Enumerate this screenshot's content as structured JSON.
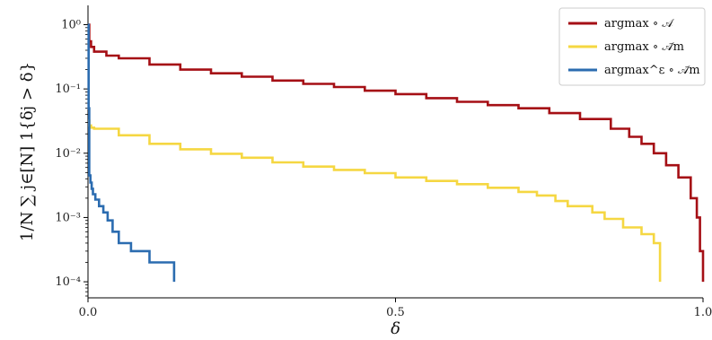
{
  "chart_data": {
    "type": "line",
    "xlabel": "δ",
    "ylabel": "1/N ∑ j∈[N] 1{δj > δ}",
    "xlim": [
      0,
      1
    ],
    "ylim_log10": [
      -4.25,
      0.3
    ],
    "y_scale": "log",
    "grid": false,
    "legend_position": "top-right",
    "x_ticks": [
      {
        "value": 0.0,
        "label": "0.0"
      },
      {
        "value": 0.5,
        "label": "0.5"
      },
      {
        "value": 1.0,
        "label": "1.0"
      }
    ],
    "y_ticks": [
      {
        "value": 1,
        "label": "10⁰"
      },
      {
        "value": 0.1,
        "label": "10⁻¹"
      },
      {
        "value": 0.01,
        "label": "10⁻²"
      },
      {
        "value": 0.001,
        "label": "10⁻³"
      },
      {
        "value": 0.0001,
        "label": "10⁻⁴"
      }
    ],
    "series": [
      {
        "name": "argmax ∘ 𝒜",
        "color": "#a50f15",
        "points": [
          [
            0.0,
            1.0
          ],
          [
            0.002,
            0.55
          ],
          [
            0.005,
            0.45
          ],
          [
            0.01,
            0.38
          ],
          [
            0.03,
            0.33
          ],
          [
            0.05,
            0.3
          ],
          [
            0.1,
            0.24
          ],
          [
            0.15,
            0.2
          ],
          [
            0.2,
            0.175
          ],
          [
            0.25,
            0.155
          ],
          [
            0.3,
            0.135
          ],
          [
            0.35,
            0.12
          ],
          [
            0.4,
            0.107
          ],
          [
            0.45,
            0.094
          ],
          [
            0.5,
            0.083
          ],
          [
            0.55,
            0.072
          ],
          [
            0.6,
            0.063
          ],
          [
            0.65,
            0.056
          ],
          [
            0.7,
            0.05
          ],
          [
            0.75,
            0.042
          ],
          [
            0.8,
            0.034
          ],
          [
            0.85,
            0.024
          ],
          [
            0.88,
            0.018
          ],
          [
            0.9,
            0.014
          ],
          [
            0.92,
            0.01
          ],
          [
            0.94,
            0.0065
          ],
          [
            0.96,
            0.0042
          ],
          [
            0.98,
            0.002
          ],
          [
            0.99,
            0.001
          ],
          [
            0.995,
            0.0003
          ],
          [
            1.0,
            0.0001
          ]
        ]
      },
      {
        "name": "argmax ∘ 𝒜̃m",
        "color": "#f5d742",
        "points": [
          [
            0.0,
            0.032
          ],
          [
            0.002,
            0.027
          ],
          [
            0.005,
            0.025
          ],
          [
            0.01,
            0.024
          ],
          [
            0.05,
            0.019
          ],
          [
            0.1,
            0.014
          ],
          [
            0.15,
            0.0115
          ],
          [
            0.2,
            0.0098
          ],
          [
            0.25,
            0.0085
          ],
          [
            0.3,
            0.0072
          ],
          [
            0.35,
            0.0062
          ],
          [
            0.4,
            0.0055
          ],
          [
            0.45,
            0.0049
          ],
          [
            0.5,
            0.0042
          ],
          [
            0.55,
            0.0037
          ],
          [
            0.6,
            0.0033
          ],
          [
            0.65,
            0.0029
          ],
          [
            0.7,
            0.0025
          ],
          [
            0.73,
            0.0022
          ],
          [
            0.76,
            0.0018
          ],
          [
            0.78,
            0.0015
          ],
          [
            0.82,
            0.0012
          ],
          [
            0.84,
            0.00095
          ],
          [
            0.87,
            0.0007
          ],
          [
            0.9,
            0.00055
          ],
          [
            0.92,
            0.0004
          ],
          [
            0.93,
            0.0002
          ],
          [
            0.93,
            0.0001
          ]
        ]
      },
      {
        "name": "argmax^ε ∘ 𝒜̃m",
        "color": "#2b6cb0",
        "points": [
          [
            0.0,
            1.0
          ],
          [
            0.001,
            0.05
          ],
          [
            0.002,
            0.0045
          ],
          [
            0.004,
            0.0035
          ],
          [
            0.006,
            0.0028
          ],
          [
            0.008,
            0.0023
          ],
          [
            0.012,
            0.0019
          ],
          [
            0.018,
            0.0015
          ],
          [
            0.025,
            0.0012
          ],
          [
            0.032,
            0.0009
          ],
          [
            0.04,
            0.0006
          ],
          [
            0.05,
            0.0004
          ],
          [
            0.07,
            0.0003
          ],
          [
            0.1,
            0.0002
          ],
          [
            0.14,
            0.0001
          ]
        ]
      }
    ]
  }
}
